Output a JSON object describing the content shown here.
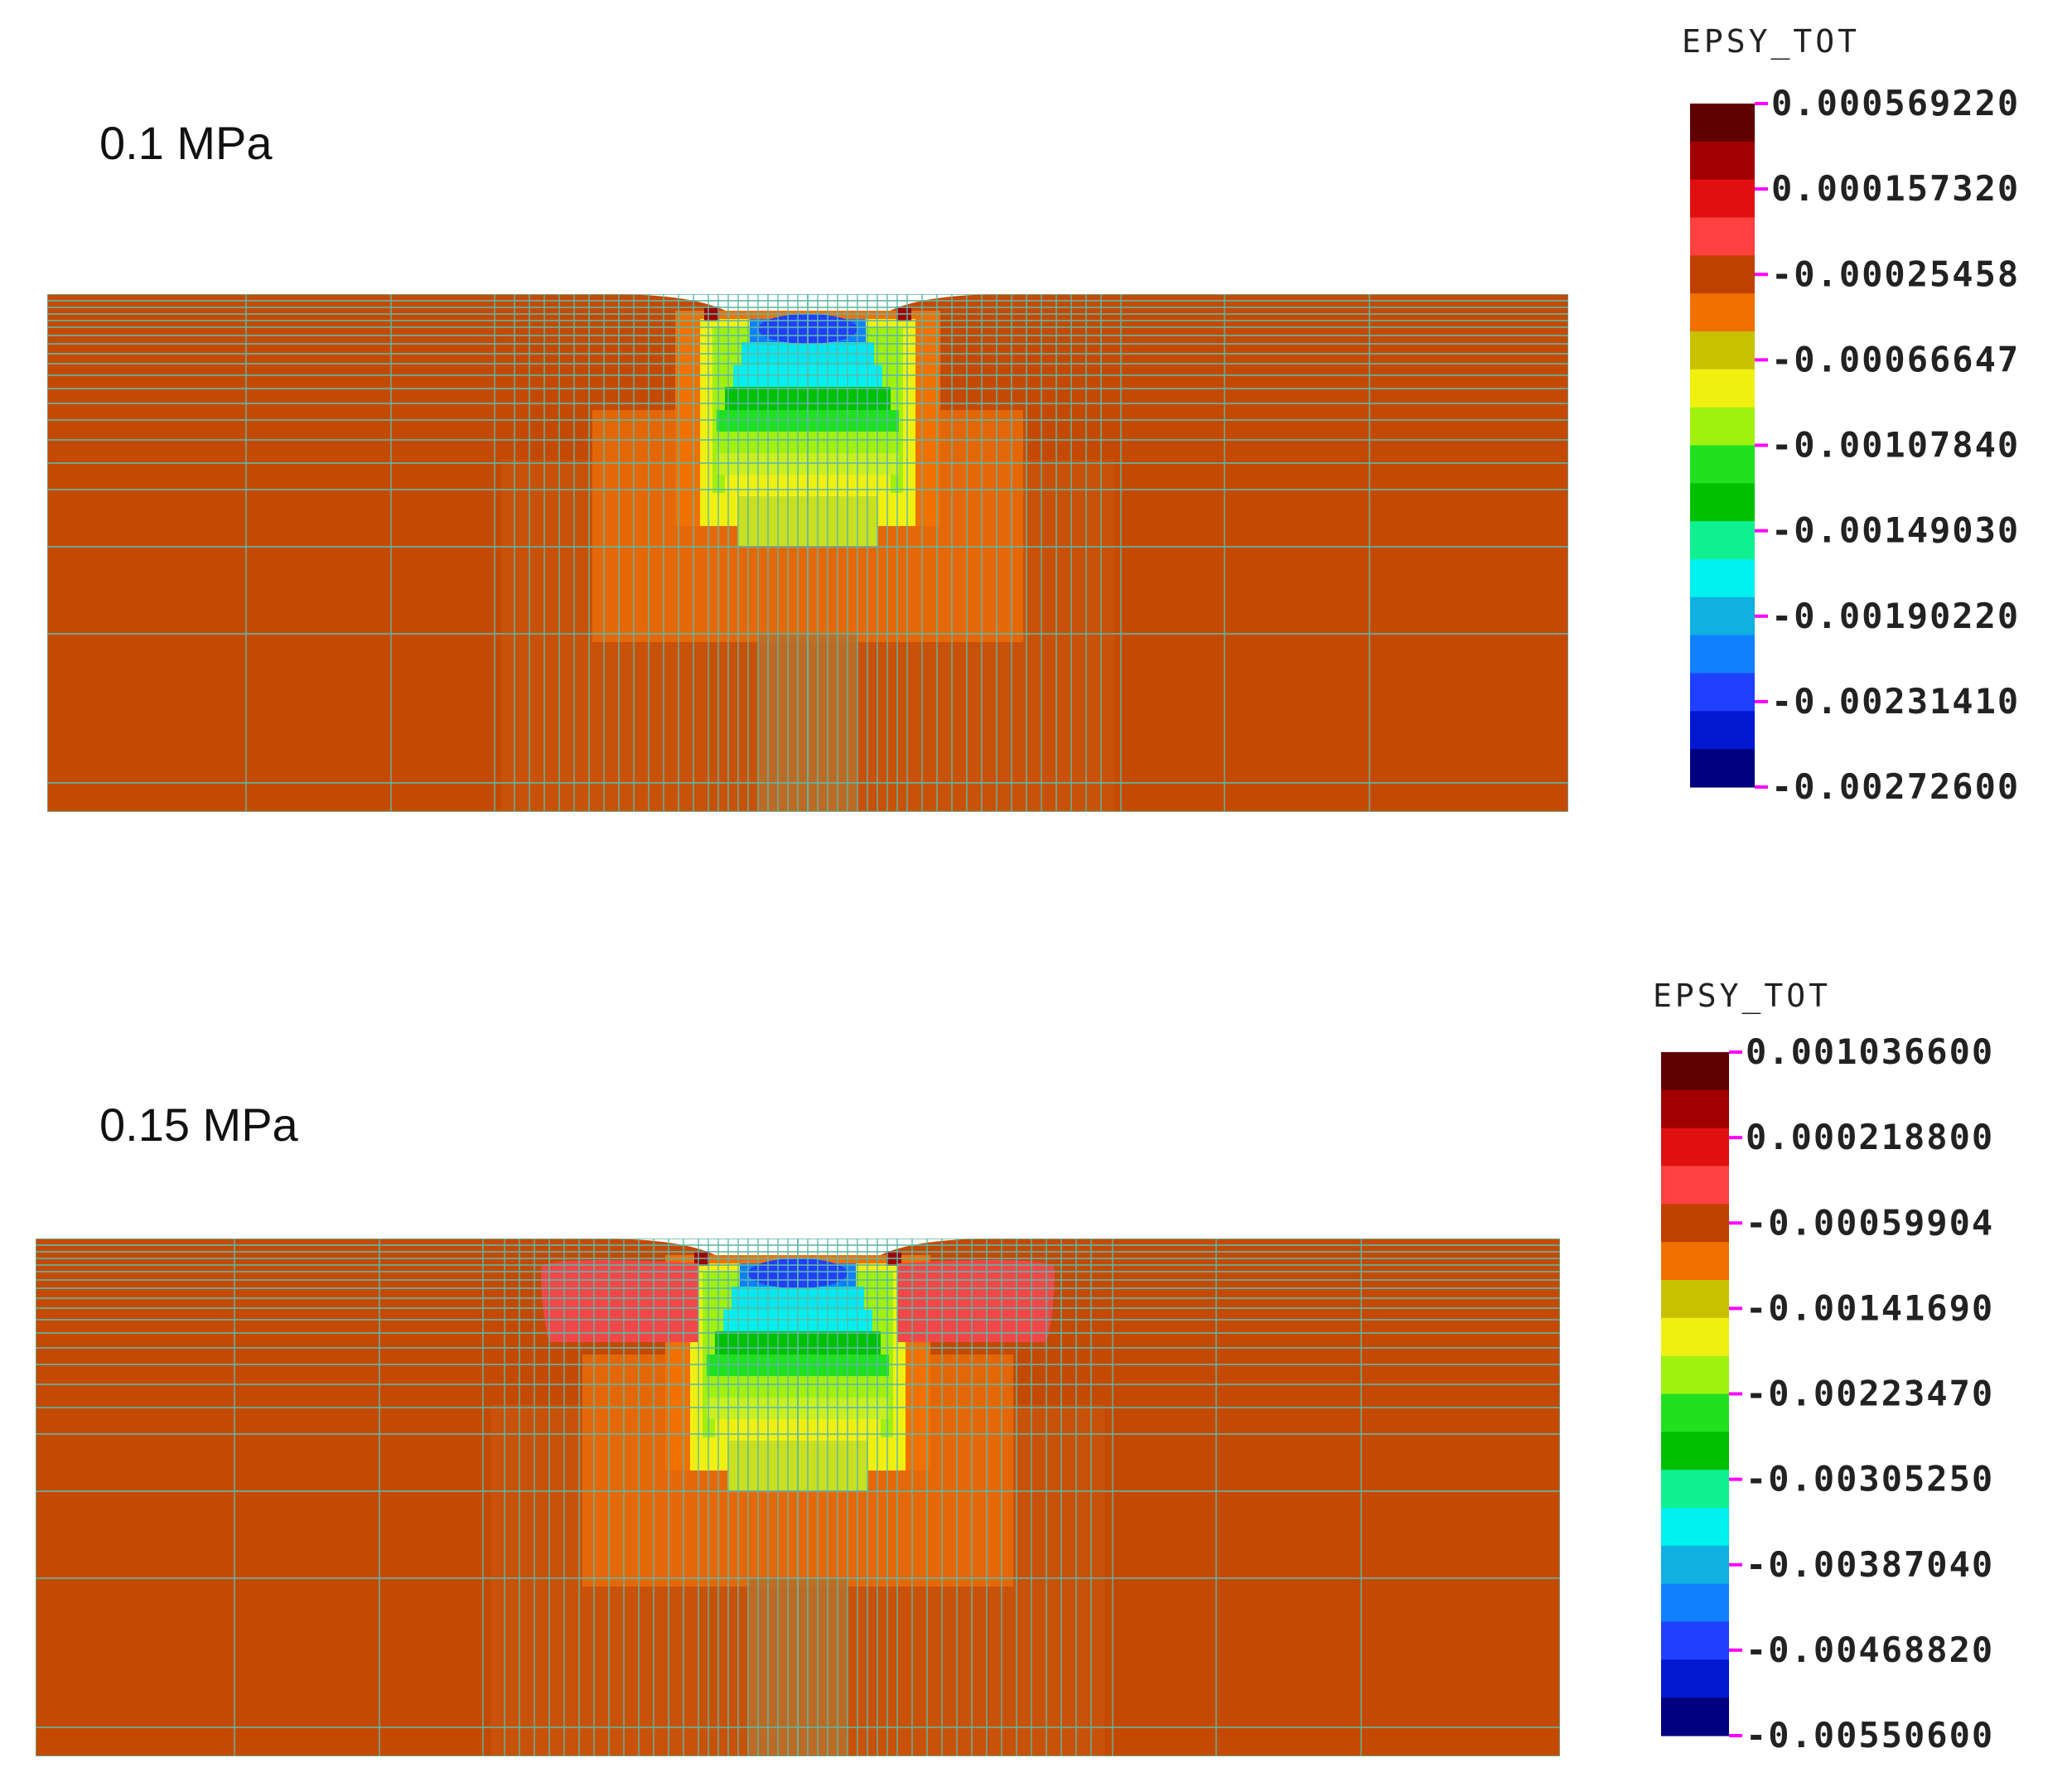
{
  "colors": {
    "background": "#c44a04",
    "mesh_line": "#5fb8a8",
    "tick_mark": "#ff00ff",
    "colormap": [
      "#000080",
      "#0018d0",
      "#2040ff",
      "#1080ff",
      "#10b0e0",
      "#00f0f0",
      "#10f090",
      "#00c000",
      "#20e020",
      "#a0f010",
      "#f0f010",
      "#c8c000",
      "#f07000",
      "#c04000",
      "#ff4040",
      "#e01010",
      "#a00000",
      "#600000"
    ]
  },
  "panels": [
    {
      "label": "0.1 MPa",
      "legend": {
        "title": "EPSY_TOT",
        "ticks": [
          "0.000569220",
          "0.000157320",
          "-0.00025458",
          "-0.00066647",
          "-0.00107840",
          "-0.00149030",
          "-0.00190220",
          "-0.00231410",
          "-0.00272600"
        ]
      }
    },
    {
      "label": "0.15 MPa",
      "legend": {
        "title": "EPSY_TOT",
        "ticks": [
          "0.001036600",
          "0.000218800",
          "-0.00059904",
          "-0.00141690",
          "-0.00223470",
          "-0.00305250",
          "-0.00387040",
          "-0.00468820",
          "-0.00550600"
        ]
      }
    }
  ]
}
